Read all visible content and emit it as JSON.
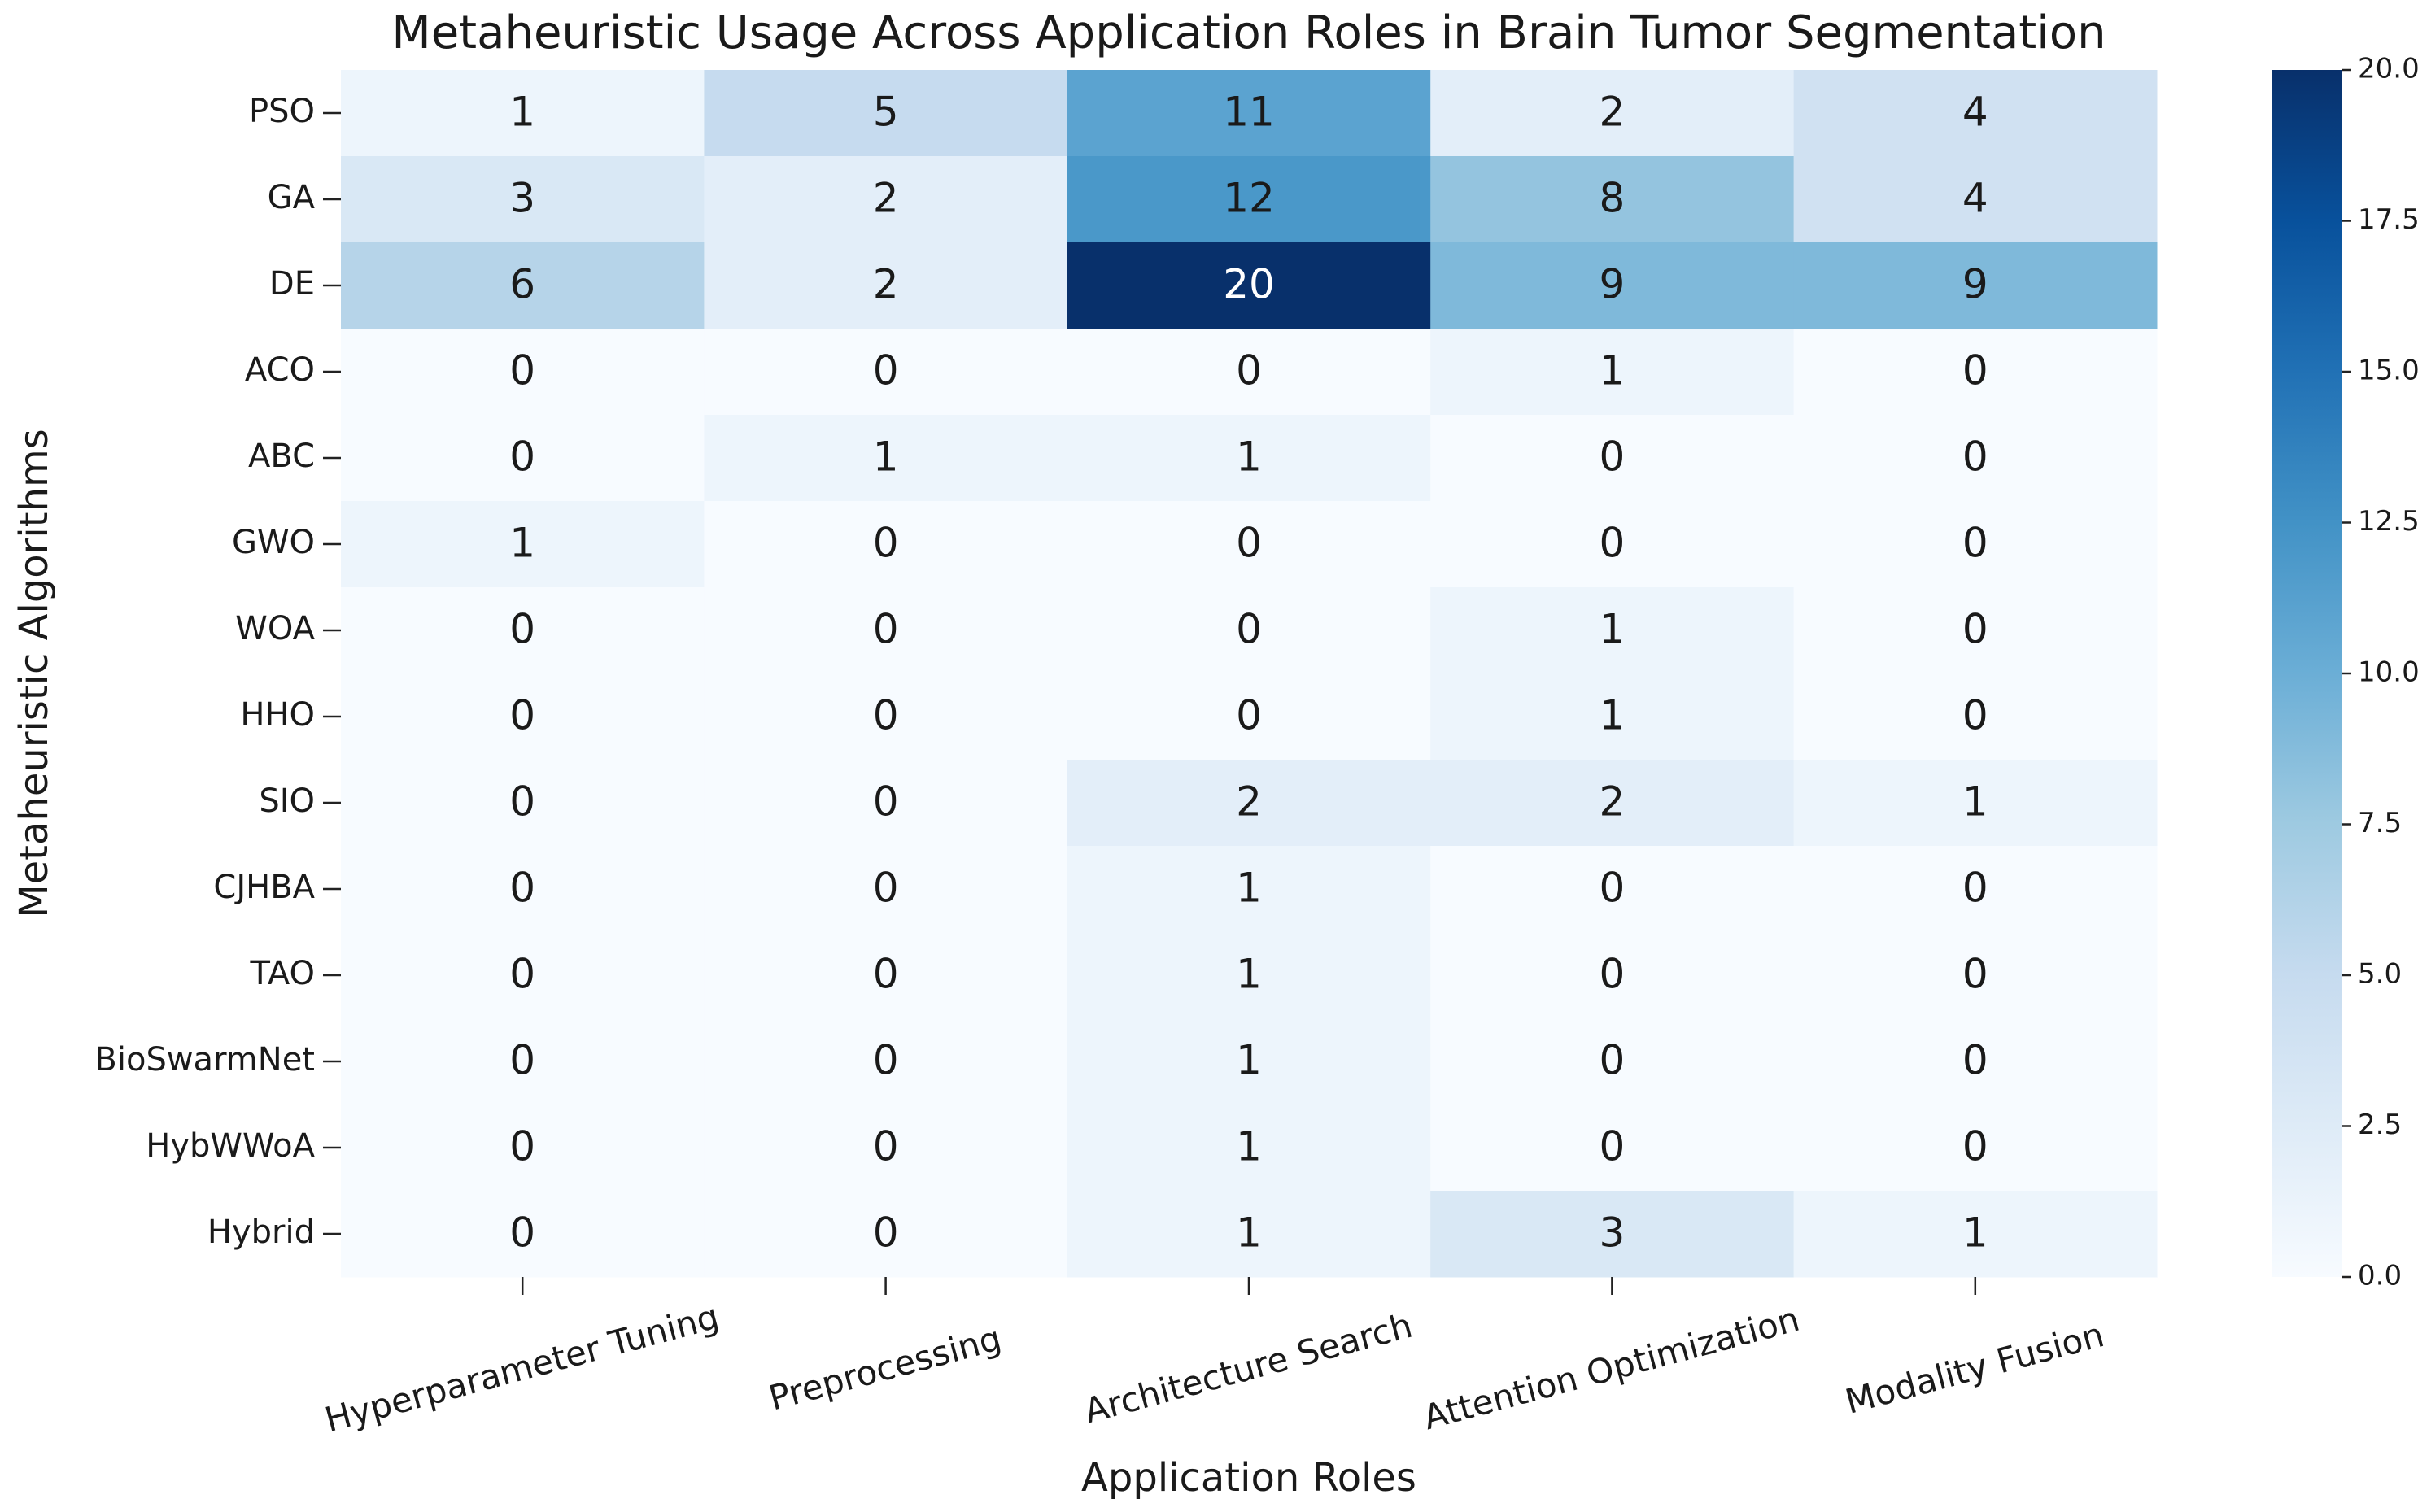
{
  "chart_data": {
    "type": "heatmap",
    "title": "Metaheuristic Usage Across Application Roles in Brain Tumor Segmentation",
    "x_label": "Application Roles",
    "y_label": "Metaheuristic Algorithms",
    "x_categories": [
      "Hyperparameter Tuning",
      "Preprocessing",
      "Architecture Search",
      "Attention Optimization",
      "Modality Fusion"
    ],
    "y_categories": [
      "PSO",
      "GA",
      "DE",
      "ACO",
      "ABC",
      "GWO",
      "WOA",
      "HHO",
      "SIO",
      "CJHBA",
      "TAO",
      "BioSwarmNet",
      "HybWWoA",
      "Hybrid"
    ],
    "values": [
      [
        1,
        5,
        11,
        2,
        4
      ],
      [
        3,
        2,
        12,
        8,
        4
      ],
      [
        6,
        2,
        20,
        9,
        9
      ],
      [
        0,
        0,
        0,
        1,
        0
      ],
      [
        0,
        1,
        1,
        0,
        0
      ],
      [
        1,
        0,
        0,
        0,
        0
      ],
      [
        0,
        0,
        0,
        1,
        0
      ],
      [
        0,
        0,
        0,
        1,
        0
      ],
      [
        0,
        0,
        2,
        2,
        1
      ],
      [
        0,
        0,
        1,
        0,
        0
      ],
      [
        0,
        0,
        1,
        0,
        0
      ],
      [
        0,
        0,
        1,
        0,
        0
      ],
      [
        0,
        0,
        1,
        0,
        0
      ],
      [
        0,
        0,
        1,
        3,
        1
      ]
    ],
    "colormap": [
      "#f7fbff",
      "#deebf7",
      "#c6dbef",
      "#9ecae1",
      "#6baed6",
      "#4292c6",
      "#2171b5",
      "#08519c",
      "#08306b"
    ],
    "zlim": [
      0,
      20
    ],
    "zticks": [
      {
        "value": 0,
        "label": "0.0"
      },
      2.5,
      {
        "value": 5,
        "label": "5.0"
      },
      7.5,
      {
        "value": 10,
        "label": "10.0"
      },
      12.5,
      {
        "value": 15,
        "label": "15.0"
      },
      17.5,
      {
        "value": 20,
        "label": "20.0"
      }
    ]
  }
}
